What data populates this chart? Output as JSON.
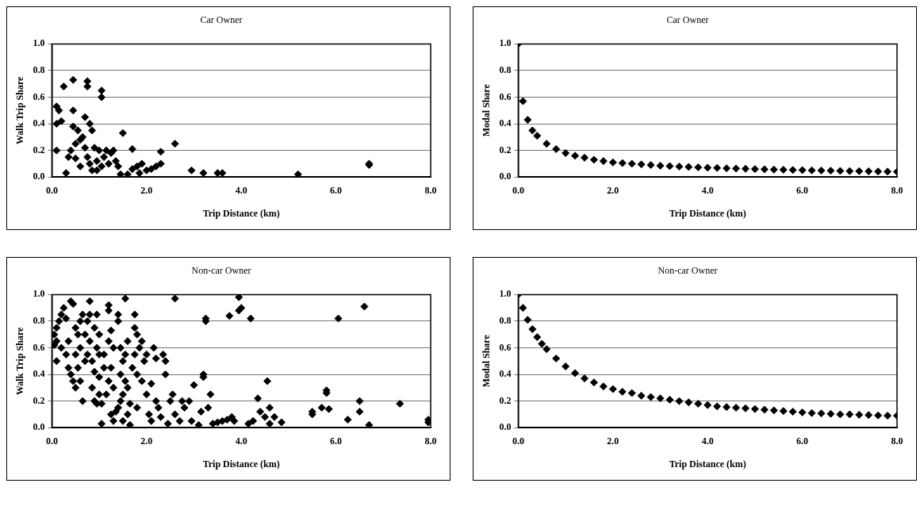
{
  "chart_data": [
    {
      "type": "scatter",
      "title": "Car Owner",
      "xlabel": "Trip Distance (km)",
      "ylabel": "Walk Trip Share",
      "color": "#000000",
      "marker": "diamond",
      "grid": "y",
      "xlim": [
        0,
        8
      ],
      "ylim": [
        0,
        1
      ],
      "xticks": [
        {
          "value": 0,
          "label": "0.0"
        },
        {
          "value": 2,
          "label": "2.0"
        },
        {
          "value": 4,
          "label": "4.0"
        },
        {
          "value": 6,
          "label": "6.0"
        },
        {
          "value": 8,
          "label": "8.0"
        }
      ],
      "yticks": [
        {
          "value": 0,
          "label": "0.0"
        },
        {
          "value": 0.2,
          "label": "0.2"
        },
        {
          "value": 0.4,
          "label": "0.4"
        },
        {
          "value": 0.6,
          "label": "0.6"
        },
        {
          "value": 0.8,
          "label": "0.8"
        },
        {
          "value": 1,
          "label": "1.0"
        }
      ],
      "x": [
        0.1,
        0.15,
        0.1,
        0.2,
        0.1,
        0.25,
        0.45,
        0.75,
        0.75,
        1.05,
        1.05,
        0.45,
        0.45,
        0.55,
        0.7,
        0.8,
        0.85,
        0.35,
        0.4,
        0.5,
        0.5,
        0.6,
        0.65,
        0.7,
        0.75,
        0.8,
        0.85,
        0.9,
        0.95,
        1.0,
        1.05,
        1.1,
        1.15,
        1.2,
        1.25,
        1.3,
        1.35,
        1.4,
        1.45,
        1.5,
        1.7,
        1.6,
        1.7,
        1.8,
        1.9,
        2.0,
        2.1,
        2.2,
        2.3,
        2.3,
        2.6,
        0.3,
        2.95,
        3.2,
        3.5,
        3.6,
        5.2,
        6.7,
        6.7,
        0.6,
        0.95,
        1.85
      ],
      "values": [
        0.53,
        0.5,
        0.4,
        0.42,
        0.2,
        0.68,
        0.73,
        0.72,
        0.68,
        0.65,
        0.6,
        0.5,
        0.38,
        0.35,
        0.45,
        0.4,
        0.35,
        0.15,
        0.2,
        0.25,
        0.14,
        0.28,
        0.3,
        0.22,
        0.15,
        0.1,
        0.05,
        0.22,
        0.12,
        0.2,
        0.08,
        0.15,
        0.2,
        0.1,
        0.18,
        0.2,
        0.12,
        0.08,
        0.02,
        0.33,
        0.21,
        0.02,
        0.06,
        0.08,
        0.1,
        0.05,
        0.06,
        0.08,
        0.19,
        0.1,
        0.25,
        0.03,
        0.05,
        0.03,
        0.03,
        0.03,
        0.02,
        0.09,
        0.1,
        0.08,
        0.05,
        0.03
      ]
    },
    {
      "type": "scatter",
      "title": "Car Owner",
      "xlabel": "Trip Distance (km)",
      "ylabel": "Modal Share",
      "color": "#000000",
      "marker": "diamond",
      "grid": "y",
      "xlim": [
        0,
        8
      ],
      "ylim": [
        0,
        1
      ],
      "xticks": [
        {
          "value": 0,
          "label": "0.0"
        },
        {
          "value": 2,
          "label": "2.0"
        },
        {
          "value": 4,
          "label": "4.0"
        },
        {
          "value": 6,
          "label": "6.0"
        },
        {
          "value": 8,
          "label": "8.0"
        }
      ],
      "yticks": [
        {
          "value": 0,
          "label": "0.0"
        },
        {
          "value": 0.2,
          "label": "0.2"
        },
        {
          "value": 0.4,
          "label": "0.4"
        },
        {
          "value": 0.6,
          "label": "0.6"
        },
        {
          "value": 0.8,
          "label": "0.8"
        },
        {
          "value": 1,
          "label": "1.0"
        }
      ],
      "x": [
        0,
        0.1,
        0.2,
        0.3,
        0.4,
        0.6,
        0.8,
        1.0,
        1.2,
        1.4,
        1.6,
        1.8,
        2.0,
        2.2,
        2.4,
        2.6,
        2.8,
        3.0,
        3.2,
        3.4,
        3.6,
        3.8,
        4.0,
        4.2,
        4.4,
        4.6,
        4.8,
        5.0,
        5.2,
        5.4,
        5.6,
        5.8,
        6.0,
        6.2,
        6.4,
        6.6,
        6.8,
        7.0,
        7.2,
        7.4,
        7.6,
        7.8,
        8.0
      ],
      "values": [
        1.0,
        0.57,
        0.43,
        0.35,
        0.31,
        0.25,
        0.21,
        0.18,
        0.16,
        0.145,
        0.13,
        0.12,
        0.11,
        0.105,
        0.1,
        0.095,
        0.09,
        0.085,
        0.082,
        0.079,
        0.076,
        0.073,
        0.07,
        0.068,
        0.066,
        0.064,
        0.062,
        0.06,
        0.058,
        0.056,
        0.055,
        0.053,
        0.052,
        0.05,
        0.049,
        0.048,
        0.046,
        0.045,
        0.044,
        0.043,
        0.042,
        0.041,
        0.04
      ]
    },
    {
      "type": "scatter",
      "title": "Non-car Owner",
      "xlabel": "Trip Distance (km)",
      "ylabel": "Walk Trip Share",
      "color": "#000000",
      "marker": "diamond",
      "grid": "y",
      "xlim": [
        0,
        8
      ],
      "ylim": [
        0,
        1
      ],
      "xticks": [
        {
          "value": 0,
          "label": "0.0"
        },
        {
          "value": 2,
          "label": "2.0"
        },
        {
          "value": 4,
          "label": "4.0"
        },
        {
          "value": 6,
          "label": "6.0"
        },
        {
          "value": 8,
          "label": "8.0"
        }
      ],
      "yticks": [
        {
          "value": 0,
          "label": "0.0"
        },
        {
          "value": 0.2,
          "label": "0.2"
        },
        {
          "value": 0.4,
          "label": "0.4"
        },
        {
          "value": 0.6,
          "label": "0.6"
        },
        {
          "value": 0.8,
          "label": "0.8"
        },
        {
          "value": 1,
          "label": "1.0"
        }
      ],
      "x": [
        0.05,
        0.05,
        0.1,
        0.1,
        0.15,
        0.2,
        0.25,
        0.3,
        0.35,
        0.4,
        0.45,
        0.5,
        0.5,
        0.55,
        0.6,
        0.6,
        0.65,
        0.7,
        0.75,
        0.8,
        0.8,
        0.85,
        0.85,
        0.9,
        0.9,
        0.95,
        0.95,
        1.0,
        1.0,
        1.05,
        1.05,
        1.1,
        1.15,
        1.2,
        1.2,
        1.25,
        1.25,
        1.3,
        1.3,
        1.35,
        1.4,
        1.4,
        1.45,
        1.45,
        1.5,
        1.55,
        1.55,
        1.6,
        1.6,
        1.65,
        1.75,
        1.75,
        1.75,
        1.8,
        1.8,
        1.8,
        1.85,
        1.9,
        1.9,
        1.95,
        2.0,
        2.0,
        2.05,
        2.1,
        2.1,
        2.15,
        2.2,
        2.2,
        2.25,
        2.3,
        2.35,
        2.4,
        2.4,
        2.45,
        2.5,
        2.55,
        2.6,
        2.6,
        2.7,
        2.75,
        2.8,
        2.9,
        2.95,
        3.0,
        3.1,
        3.15,
        3.2,
        3.2,
        3.25,
        3.25,
        3.3,
        3.35,
        3.4,
        3.5,
        3.6,
        3.7,
        3.75,
        3.8,
        3.85,
        3.95,
        3.95,
        4.0,
        4.15,
        4.2,
        4.25,
        4.35,
        4.4,
        4.5,
        4.55,
        4.6,
        4.6,
        4.7,
        4.85,
        5.5,
        5.5,
        5.7,
        5.8,
        5.8,
        5.85,
        6.05,
        6.25,
        6.5,
        6.5,
        6.6,
        6.7,
        7.35,
        7.95,
        7.95,
        0.1,
        0.2,
        0.3,
        0.35,
        0.4,
        0.45,
        0.5,
        0.7,
        0.75,
        0.6,
        0.65,
        0.9,
        0.95,
        1.0,
        1.1,
        1.2,
        1.25,
        1.3,
        1.4,
        1.5,
        1.55,
        1.6,
        1.65,
        1.7,
        1.45,
        1.5,
        1.2,
        1.0,
        0.8,
        0.55
      ],
      "values": [
        0.7,
        0.62,
        0.5,
        0.75,
        0.8,
        0.85,
        0.9,
        0.82,
        0.65,
        0.95,
        0.93,
        0.75,
        0.55,
        0.45,
        0.35,
        0.6,
        0.2,
        0.7,
        0.8,
        0.95,
        0.65,
        0.5,
        0.3,
        0.75,
        0.42,
        0.85,
        0.6,
        0.7,
        0.38,
        0.18,
        0.03,
        0.55,
        0.25,
        0.92,
        0.88,
        0.73,
        0.45,
        0.6,
        0.3,
        0.12,
        0.85,
        0.8,
        0.4,
        0.2,
        0.05,
        0.97,
        0.55,
        0.65,
        0.3,
        0.02,
        0.85,
        0.75,
        0.55,
        0.7,
        0.4,
        0.15,
        0.6,
        0.65,
        0.35,
        0.5,
        0.55,
        0.25,
        0.1,
        0.33,
        0.05,
        0.6,
        0.52,
        0.2,
        0.15,
        0.08,
        0.55,
        0.5,
        0.4,
        0.03,
        0.2,
        0.25,
        0.97,
        0.1,
        0.05,
        0.2,
        0.15,
        0.2,
        0.05,
        0.32,
        0.02,
        0.12,
        0.4,
        0.38,
        0.82,
        0.8,
        0.15,
        0.25,
        0.03,
        0.04,
        0.05,
        0.06,
        0.84,
        0.08,
        0.05,
        0.88,
        0.98,
        0.9,
        0.03,
        0.82,
        0.05,
        0.22,
        0.12,
        0.08,
        0.35,
        0.15,
        0.03,
        0.08,
        0.04,
        0.1,
        0.12,
        0.15,
        0.28,
        0.26,
        0.14,
        0.82,
        0.06,
        0.2,
        0.12,
        0.91,
        0.02,
        0.18,
        0.06,
        0.04,
        0.65,
        0.6,
        0.55,
        0.45,
        0.4,
        0.35,
        0.3,
        0.5,
        0.55,
        0.8,
        0.85,
        0.2,
        0.18,
        0.25,
        0.45,
        0.35,
        0.1,
        0.05,
        0.15,
        0.25,
        0.35,
        0.1,
        0.18,
        0.45,
        0.6,
        0.5,
        0.65,
        0.55,
        0.85,
        0.7
      ]
    },
    {
      "type": "scatter",
      "title": "Non-car Owner",
      "xlabel": "Trip Distance (km)",
      "ylabel": "Modal Share",
      "color": "#000000",
      "marker": "diamond",
      "grid": "y",
      "xlim": [
        0,
        8
      ],
      "ylim": [
        0,
        1
      ],
      "xticks": [
        {
          "value": 0,
          "label": "0.0"
        },
        {
          "value": 2,
          "label": "2.0"
        },
        {
          "value": 4,
          "label": "4.0"
        },
        {
          "value": 6,
          "label": "6.0"
        },
        {
          "value": 8,
          "label": "8.0"
        }
      ],
      "yticks": [
        {
          "value": 0,
          "label": "0.0"
        },
        {
          "value": 0.2,
          "label": "0.2"
        },
        {
          "value": 0.4,
          "label": "0.4"
        },
        {
          "value": 0.6,
          "label": "0.6"
        },
        {
          "value": 0.8,
          "label": "0.8"
        },
        {
          "value": 1,
          "label": "1.0"
        }
      ],
      "x": [
        0,
        0.1,
        0.2,
        0.3,
        0.4,
        0.5,
        0.6,
        0.8,
        1.0,
        1.2,
        1.4,
        1.6,
        1.8,
        2.0,
        2.2,
        2.4,
        2.6,
        2.8,
        3.0,
        3.2,
        3.4,
        3.6,
        3.8,
        4.0,
        4.2,
        4.4,
        4.6,
        4.8,
        5.0,
        5.2,
        5.4,
        5.6,
        5.8,
        6.0,
        6.2,
        6.4,
        6.6,
        6.8,
        7.0,
        7.2,
        7.4,
        7.6,
        7.8,
        8.0
      ],
      "values": [
        1.0,
        0.9,
        0.81,
        0.74,
        0.68,
        0.63,
        0.59,
        0.52,
        0.46,
        0.41,
        0.37,
        0.34,
        0.31,
        0.29,
        0.27,
        0.26,
        0.24,
        0.23,
        0.22,
        0.21,
        0.2,
        0.19,
        0.18,
        0.17,
        0.16,
        0.155,
        0.15,
        0.145,
        0.14,
        0.135,
        0.13,
        0.125,
        0.12,
        0.115,
        0.11,
        0.107,
        0.104,
        0.1,
        0.1,
        0.097,
        0.095,
        0.092,
        0.09,
        0.09
      ]
    }
  ]
}
